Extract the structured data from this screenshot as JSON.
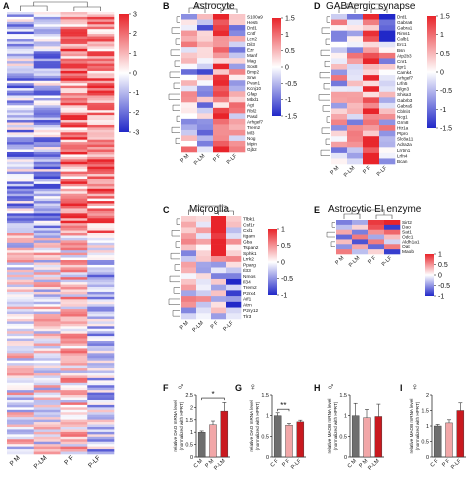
{
  "colors": {
    "high": "#e8242a",
    "mid": "#ffffff",
    "low": "#2128c8",
    "bar_dark": "#6e6e6e",
    "bar_pink": "#f2a7a8",
    "bar_red": "#c9191f"
  },
  "chart_data": [
    {
      "type": "heatmap",
      "panel": "A",
      "title": "",
      "columns": [
        "P M",
        "P-LM",
        "P F",
        "P-LF"
      ],
      "colorbar_ticks": [
        "3",
        "2",
        "1",
        "0",
        "-1",
        "-2",
        "-3"
      ],
      "colorbar_range": [
        -3,
        3
      ]
    },
    {
      "type": "heatmap",
      "panel": "B",
      "title": "Astrocyte",
      "columns": [
        "P M",
        "P-LM",
        "P F",
        "P-LF"
      ],
      "rows": [
        "S100a9",
        "Hes5",
        "Drd1",
        "Cntf",
        "Lcn2",
        "Dil3",
        "Ezr",
        "Manf",
        "Mag",
        "Sox8",
        "Bmp2",
        "Snw",
        "Pvan1",
        "Kcnj10",
        "Gfap",
        "Mbd1",
        "Agt",
        "Rbl2",
        "Pasd",
        "Arhgef7",
        "Trem2",
        "Ml3",
        "Nog",
        "Mpin",
        "Gjb2"
      ],
      "colorbar_ticks": [
        "1.5",
        "1",
        "0.5",
        "0",
        "-0.5",
        "-1",
        "-1.5"
      ],
      "colorbar_range": [
        -1.5,
        1.5
      ]
    },
    {
      "type": "heatmap",
      "panel": "C",
      "title": "Microglia",
      "columns": [
        "P M",
        "P-LM",
        "P F",
        "P-LF"
      ],
      "rows": [
        "Tlbk1",
        "Csf1r",
        "Cxl1",
        "Itgam",
        "Gba",
        "Tspan2",
        "Sphk1",
        "Lrrk2",
        "Pparg",
        "Il33",
        "Nmos",
        "Il34",
        "Trem2",
        "P2rx4",
        "Aif1",
        "Atrn",
        "P2ry12",
        "Tlr3"
      ],
      "colorbar_ticks": [
        "1",
        "0.5",
        "0",
        "-0.5",
        "-1"
      ],
      "colorbar_range": [
        -1,
        1
      ]
    },
    {
      "type": "heatmap",
      "panel": "D",
      "title": "GABAergic synapse",
      "columns": [
        "P M",
        "P-LM",
        "P F",
        "P-LF"
      ],
      "rows": [
        "Drd1",
        "Gabra6",
        "Gabra1",
        "Rims1",
        "Calb1",
        "Erc1",
        "Bsn",
        "Atp2b3",
        "Cnr1",
        "Itpr1",
        "Camk4",
        "Arhgef7",
        "Lrfn5",
        "Nlgn3",
        "Shisa3",
        "Gabrb3",
        "Gabra5",
        "Cblnl4",
        "Ncg1",
        "Grm8",
        "Htr1a",
        "Ptpro",
        "Slc8a11",
        "Adra2a",
        "Lrrtm1",
        "Lrfn4",
        "Bcan"
      ],
      "colorbar_ticks": [
        "1.5",
        "1",
        "0.5",
        "0",
        "-0.5",
        "-1",
        "-1.5"
      ],
      "colorbar_range": [
        -1.5,
        1.5
      ]
    },
    {
      "type": "heatmap",
      "panel": "E",
      "title": "Astrocytic EI enzyme",
      "columns": [
        "P M",
        "P-LM",
        "P F",
        "P-LF"
      ],
      "rows": [
        "Sirt2",
        "Dao",
        "Sat1",
        "Odc1",
        "Aldh1a1",
        "Oat",
        "Maob"
      ],
      "values": [
        [
          -0.6,
          -0.4,
          0.9,
          1.0
        ],
        [
          -0.3,
          0.2,
          0.8,
          -0.9
        ],
        [
          0.4,
          -0.6,
          0.5,
          0.7
        ],
        [
          -0.7,
          0.6,
          -0.4,
          0.3
        ],
        [
          0.3,
          -0.8,
          0.6,
          -0.2
        ],
        [
          -0.5,
          0.4,
          -0.7,
          0.6
        ],
        [
          0.6,
          -0.3,
          0.2,
          -0.9
        ]
      ],
      "colorbar_ticks": [
        "1",
        "0.5",
        "0",
        "-0.5",
        "-1"
      ],
      "colorbar_range": [
        -1,
        1
      ]
    },
    {
      "type": "bar",
      "panel": "F",
      "sex": "♂",
      "ylabel": "relative DAO mRNA level\n(normalized with HPRT)",
      "categories": [
        "C M",
        "P M",
        "P-LM"
      ],
      "values": [
        1.0,
        1.3,
        1.85
      ],
      "errors": [
        0.05,
        0.15,
        0.35
      ],
      "yticks": [
        "0",
        "0.5",
        "1",
        "1.5",
        "2",
        "2.5"
      ],
      "ylim": [
        0,
        2.5
      ],
      "significance": [
        {
          "from": 0,
          "to": 2,
          "label": "*"
        }
      ]
    },
    {
      "type": "bar",
      "panel": "G",
      "sex": "♀",
      "ylabel": "relative DAO mRNA level\n(normalized with HPRT)",
      "categories": [
        "C F",
        "P F",
        "P-LF"
      ],
      "values": [
        1.0,
        0.77,
        0.85
      ],
      "errors": [
        0.07,
        0.04,
        0.04
      ],
      "yticks": [
        "0",
        "0.5",
        "1",
        "1.5"
      ],
      "ylim": [
        0,
        1.5
      ],
      "significance": [
        {
          "from": 0,
          "to": 1,
          "label": "**"
        }
      ]
    },
    {
      "type": "bar",
      "panel": "H",
      "sex": "♂",
      "ylabel": "relative MAOB mRNA level\n(normalized with HPRT)",
      "categories": [
        "C M",
        "P M",
        "P-LM"
      ],
      "values": [
        1.0,
        0.95,
        0.98
      ],
      "errors": [
        0.3,
        0.2,
        0.3
      ],
      "yticks": [
        "0",
        "0.5",
        "1",
        "1.5"
      ],
      "ylim": [
        0,
        1.5
      ],
      "significance": []
    },
    {
      "type": "bar",
      "panel": "I",
      "sex": "♀",
      "ylabel": "relative MAOB mRNA level\n(normalized with HPRT)",
      "categories": [
        "C F",
        "P F",
        "P-LF"
      ],
      "values": [
        1.0,
        1.1,
        1.5
      ],
      "errors": [
        0.05,
        0.1,
        0.25
      ],
      "yticks": [
        "0",
        "0.5",
        "1",
        "1.5",
        "2"
      ],
      "ylim": [
        0,
        2.0
      ],
      "significance": []
    }
  ]
}
